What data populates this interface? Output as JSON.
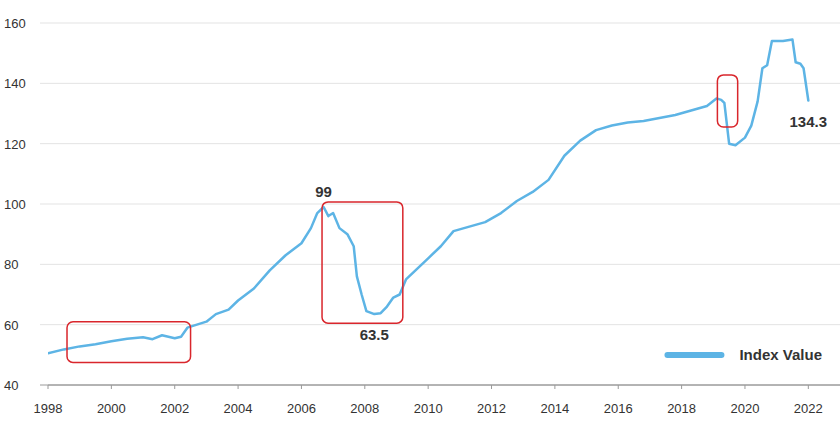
{
  "chart_data": {
    "type": "line",
    "x": [
      1998.0,
      1998.5,
      1999.0,
      1999.5,
      2000.0,
      2000.5,
      2001.0,
      2001.3,
      2001.6,
      2002.0,
      2002.2,
      2002.4,
      2002.7,
      2003.0,
      2003.3,
      2003.7,
      2004.0,
      2004.5,
      2005.0,
      2005.5,
      2006.0,
      2006.3,
      2006.5,
      2006.7,
      2006.85,
      2007.0,
      2007.2,
      2007.45,
      2007.65,
      2007.75,
      2007.9,
      2008.05,
      2008.3,
      2008.5,
      2008.7,
      2008.9,
      2009.1,
      2009.3,
      2009.6,
      2010.0,
      2010.4,
      2010.8,
      2011.3,
      2011.8,
      2012.3,
      2012.8,
      2013.3,
      2013.8,
      2014.3,
      2014.8,
      2015.3,
      2015.8,
      2016.3,
      2016.8,
      2017.3,
      2017.8,
      2018.3,
      2018.8,
      2019.1,
      2019.25,
      2019.35,
      2019.5,
      2019.7,
      2020.0,
      2020.2,
      2020.4,
      2020.55,
      2020.7,
      2020.85,
      2021.2,
      2021.5,
      2021.6,
      2021.75,
      2021.85,
      2022.0
    ],
    "series": [
      {
        "name": "Index Value",
        "color": "#5db4e5",
        "values": [
          50.5,
          51.8,
          52.8,
          53.5,
          54.5,
          55.3,
          55.8,
          55.2,
          56.5,
          55.5,
          56,
          59,
          60,
          61,
          63.5,
          65,
          68,
          72,
          78,
          83,
          87,
          92,
          97,
          99,
          96,
          97,
          92,
          90,
          86,
          76,
          70,
          64.5,
          63.5,
          63.8,
          66,
          69,
          70,
          75,
          78,
          82,
          86,
          91,
          92.5,
          94,
          97,
          101,
          104,
          108,
          116,
          121,
          124.5,
          126,
          127,
          127.5,
          128.5,
          129.5,
          131,
          132.5,
          135,
          134.5,
          133.5,
          120,
          119.5,
          122,
          126,
          134,
          145,
          146,
          154,
          154,
          154.5,
          147,
          146.5,
          145,
          134.3
        ]
      }
    ],
    "xlim": [
      1998,
      2023
    ],
    "xticks": [
      1998,
      2000,
      2002,
      2004,
      2006,
      2008,
      2010,
      2012,
      2014,
      2016,
      2018,
      2020,
      2022
    ],
    "ylim": [
      40,
      160
    ],
    "yticks": [
      40,
      60,
      80,
      100,
      120,
      140,
      160
    ],
    "grid": true,
    "legend": "lower right",
    "annotations": [
      {
        "text": "99",
        "x": 2006.7,
        "y": 99
      },
      {
        "text": "63.5",
        "x": 2008.3,
        "y": 63.5
      },
      {
        "text": "134.3",
        "x": 2022.0,
        "y": 134.3
      }
    ],
    "highlights": [
      {
        "x": [
          1998.6,
          2002.5
        ],
        "y": [
          47.5,
          61
        ]
      },
      {
        "x": [
          2006.65,
          2009.2
        ],
        "y": [
          60.5,
          100.7
        ]
      },
      {
        "x": [
          2019.13,
          2019.77
        ],
        "y": [
          125.5,
          142.8
        ]
      }
    ]
  }
}
